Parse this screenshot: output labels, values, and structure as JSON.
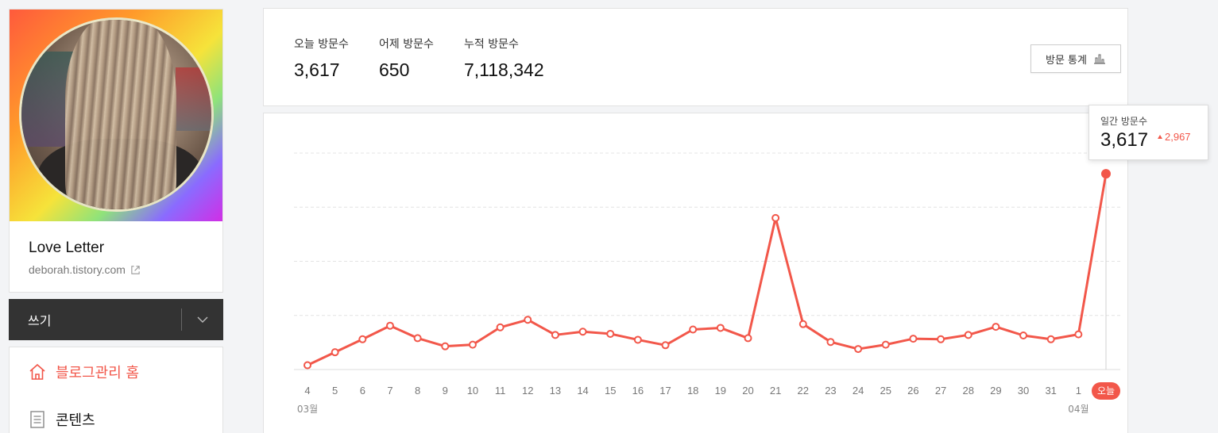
{
  "profile": {
    "blog_title": "Love Letter",
    "blog_url": "deborah.tistory.com"
  },
  "write": {
    "label": "쓰기"
  },
  "menu": {
    "items": [
      {
        "label": "블로그관리 홈",
        "icon": "home-icon",
        "active": true
      },
      {
        "label": "콘텐츠",
        "icon": "document-icon",
        "active": false
      }
    ]
  },
  "stats": {
    "today": {
      "label": "오늘 방문수",
      "value": "3,617"
    },
    "yesterday": {
      "label": "어제 방문수",
      "value": "650"
    },
    "total": {
      "label": "누적 방문수",
      "value": "7,118,342"
    },
    "button_label": "방문 통계"
  },
  "tooltip": {
    "label": "일간 방문수",
    "value": "3,617",
    "change": "2,967"
  },
  "chart_data": {
    "type": "line",
    "x": [
      "4",
      "5",
      "6",
      "7",
      "8",
      "9",
      "10",
      "11",
      "12",
      "13",
      "14",
      "15",
      "16",
      "17",
      "18",
      "19",
      "20",
      "21",
      "22",
      "23",
      "24",
      "25",
      "26",
      "27",
      "28",
      "29",
      "30",
      "31",
      "1",
      "오늘"
    ],
    "month_labels": [
      {
        "label": "03월",
        "at": "4"
      },
      {
        "label": "04월",
        "at": "1"
      }
    ],
    "series": [
      {
        "values": [
          80,
          320,
          560,
          810,
          580,
          430,
          460,
          780,
          920,
          640,
          700,
          660,
          550,
          450,
          740,
          770,
          580,
          2800,
          840,
          510,
          380,
          460,
          570,
          560,
          640,
          790,
          630,
          560,
          650,
          3617
        ]
      }
    ],
    "ylim": [
      0,
      4000
    ],
    "grid": true,
    "line_color": "#f2574a"
  },
  "colors": {
    "accent": "#f2574a",
    "dark_bar": "#333333"
  }
}
